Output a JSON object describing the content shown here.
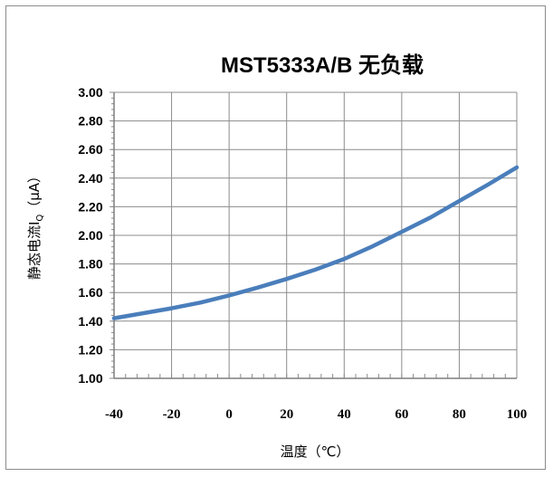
{
  "chart_data": {
    "type": "line",
    "title": "MST5333A/B  无负载",
    "xlabel": "温度（℃）",
    "ylabel_prefix": "静态电流I",
    "ylabel_subscript": "Q",
    "ylabel_suffix": "（μA）",
    "xlim": [
      -40,
      100
    ],
    "ylim": [
      1.0,
      3.0
    ],
    "x_ticks": [
      "-40",
      "-20",
      "0",
      "20",
      "40",
      "60",
      "80",
      "100"
    ],
    "y_ticks": [
      "3.00",
      "2.80",
      "2.60",
      "2.40",
      "2.20",
      "2.00",
      "1.80",
      "1.60",
      "1.40",
      "1.20",
      "1.00"
    ],
    "grid": true,
    "legend": "none",
    "series": [
      {
        "color": "#4a7ebb",
        "x": [
          -40,
          -30,
          -20,
          -10,
          0,
          10,
          20,
          30,
          40,
          50,
          60,
          70,
          80,
          90,
          100
        ],
        "y": [
          1.42,
          1.455,
          1.49,
          1.53,
          1.58,
          1.635,
          1.695,
          1.76,
          1.835,
          1.925,
          2.025,
          2.125,
          2.24,
          2.355,
          2.475
        ]
      }
    ]
  }
}
